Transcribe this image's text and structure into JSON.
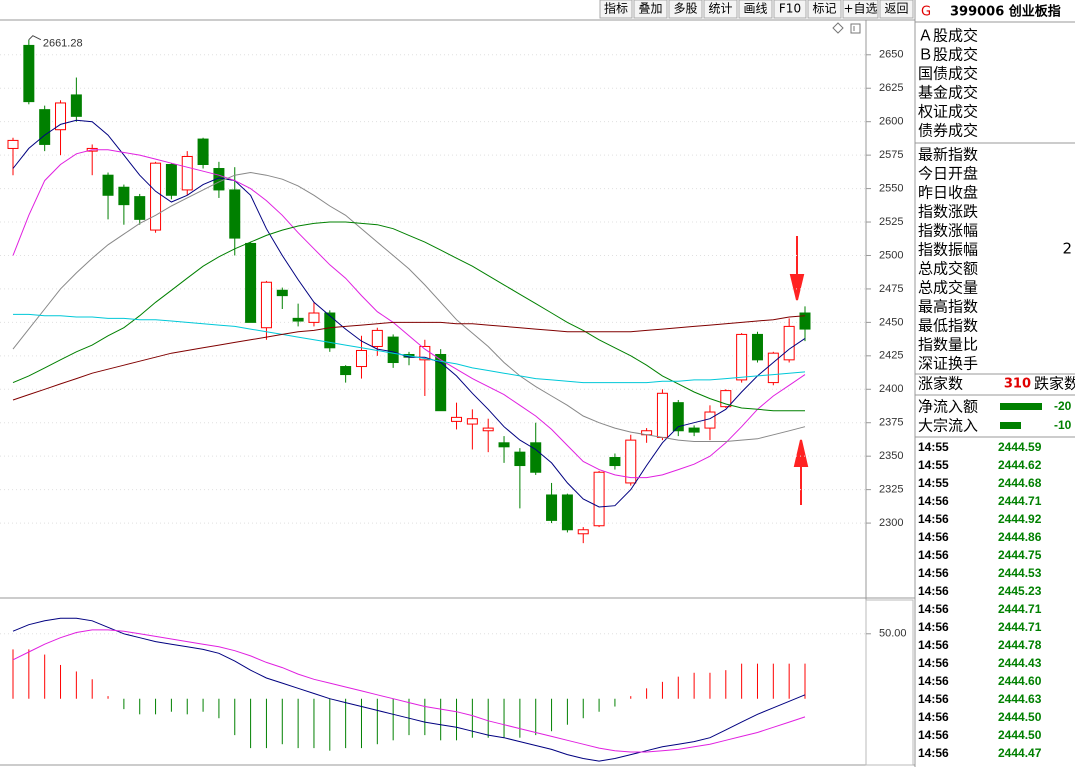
{
  "toolbar": [
    "指标",
    "叠加",
    "多股",
    "统计",
    "画线",
    "F10",
    "标记",
    "+自选",
    "返回"
  ],
  "panel": {
    "market": "G",
    "code_name": "399006 创业板指",
    "turnover_items": [
      "Ａ股成交",
      "Ｂ股成交",
      "国债成交",
      "基金成交",
      "权证成交",
      "债券成交"
    ],
    "index_items": [
      "最新指数",
      "今日开盘",
      "昨日收盘",
      "指数涨跌",
      "指数涨幅",
      "指数振幅",
      "总成交额",
      "总成交量",
      "最高指数",
      "最低指数",
      "指数量比",
      "深证换手"
    ],
    "amplitude_value": "2",
    "advancers": {
      "label": "涨家数",
      "value": "310"
    },
    "decliners": {
      "label": "跌家数"
    },
    "flows": [
      {
        "label": "净流入额",
        "value": -20
      },
      {
        "label": "大宗流入",
        "value": -10
      }
    ],
    "trades": [
      [
        "14:55",
        "2444.59"
      ],
      [
        "14:55",
        "2444.62"
      ],
      [
        "14:55",
        "2444.68"
      ],
      [
        "14:56",
        "2444.71"
      ],
      [
        "14:56",
        "2444.92"
      ],
      [
        "14:56",
        "2444.86"
      ],
      [
        "14:56",
        "2444.75"
      ],
      [
        "14:56",
        "2444.53"
      ],
      [
        "14:56",
        "2445.23"
      ],
      [
        "14:56",
        "2444.71"
      ],
      [
        "14:56",
        "2444.71"
      ],
      [
        "14:56",
        "2444.78"
      ],
      [
        "14:56",
        "2444.43"
      ],
      [
        "14:56",
        "2444.60"
      ],
      [
        "14:56",
        "2444.63"
      ],
      [
        "14:56",
        "2444.50"
      ],
      [
        "14:56",
        "2444.50"
      ],
      [
        "14:56",
        "2444.47"
      ]
    ]
  },
  "chart_data": [
    {
      "type": "candlestick",
      "up_color": "#ff0000",
      "down_color": "#008000",
      "grid": true,
      "ylim": [
        2244,
        2676
      ],
      "yticks": [
        2300,
        2325,
        2350,
        2375,
        2400,
        2425,
        2450,
        2475,
        2500,
        2525,
        2550,
        2575,
        2600,
        2625,
        2650
      ],
      "open": [
        2580,
        2657,
        2609,
        2594,
        2620,
        2578,
        2560,
        2551,
        2544,
        2519,
        2568,
        2549,
        2587,
        2565,
        2549,
        2509,
        2446,
        2474,
        2453,
        2450,
        2457,
        2417,
        2417,
        2432,
        2439,
        2426,
        2422,
        2426,
        2376,
        2374,
        2369,
        2360,
        2353,
        2360,
        2321,
        2321,
        2292,
        2298,
        2349,
        2330,
        2366,
        2364,
        2390,
        2371,
        2371,
        2387,
        2407,
        2441,
        2405,
        2422,
        2457
      ],
      "high": [
        2588,
        2661.28,
        2612,
        2616,
        2633,
        2583,
        2562,
        2553,
        2546,
        2570,
        2569,
        2578,
        2588,
        2570,
        2566,
        2510,
        2481,
        2476,
        2464,
        2465,
        2459,
        2418,
        2440,
        2446,
        2441,
        2428,
        2437,
        2430,
        2390,
        2385,
        2378,
        2365,
        2356,
        2375,
        2330,
        2322,
        2297,
        2339,
        2352,
        2366,
        2371,
        2400,
        2392,
        2373,
        2388,
        2400,
        2442,
        2443,
        2428,
        2453,
        2462
      ],
      "low": [
        2560,
        2613,
        2578,
        2575,
        2600,
        2560,
        2527,
        2523,
        2523,
        2517,
        2542,
        2545,
        2565,
        2543,
        2500,
        2450,
        2437,
        2460,
        2447,
        2447,
        2428,
        2405,
        2408,
        2425,
        2416,
        2418,
        2395,
        2384,
        2370,
        2355,
        2353,
        2345,
        2311,
        2336,
        2300,
        2293,
        2285,
        2297,
        2340,
        2328,
        2360,
        2362,
        2365,
        2365,
        2362,
        2386,
        2405,
        2420,
        2403,
        2420,
        2436
      ],
      "close": [
        2586,
        2615,
        2583,
        2614,
        2604,
        2580,
        2545,
        2538,
        2527,
        2569,
        2545,
        2574,
        2568,
        2549,
        2513,
        2450,
        2480,
        2470,
        2451,
        2457,
        2431,
        2411,
        2429,
        2444,
        2420,
        2424,
        2432,
        2384,
        2379,
        2378,
        2371,
        2357,
        2343,
        2338,
        2302,
        2295,
        2295,
        2338,
        2343,
        2362,
        2369,
        2397,
        2369,
        2368,
        2383,
        2399,
        2441,
        2422,
        2427,
        2447,
        2445
      ],
      "series": [
        {
          "color": "#000080",
          "values": [
            2565,
            2580,
            2590,
            2598,
            2601,
            2600,
            2590,
            2575,
            2560,
            2548,
            2540,
            2545,
            2553,
            2558,
            2556,
            2545,
            2520,
            2500,
            2482,
            2465,
            2455,
            2445,
            2436,
            2430,
            2428,
            2424,
            2424,
            2420,
            2410,
            2397,
            2385,
            2372,
            2362,
            2355,
            2345,
            2330,
            2318,
            2312,
            2313,
            2325,
            2343,
            2360,
            2372,
            2375,
            2378,
            2385,
            2398,
            2410,
            2420,
            2430,
            2438
          ]
        },
        {
          "color": "#e020e0",
          "values": [
            2500,
            2530,
            2556,
            2568,
            2576,
            2579,
            2579,
            2577,
            2575,
            2572,
            2569,
            2566,
            2563,
            2560,
            2556,
            2550,
            2541,
            2530,
            2517,
            2505,
            2493,
            2483,
            2470,
            2458,
            2450,
            2440,
            2430,
            2422,
            2415,
            2408,
            2402,
            2396,
            2388,
            2380,
            2370,
            2358,
            2346,
            2340,
            2336,
            2334,
            2334,
            2336,
            2340,
            2344,
            2350,
            2360,
            2372,
            2385,
            2395,
            2403,
            2411
          ]
        },
        {
          "color": "#888888",
          "values": [
            2430,
            2445,
            2460,
            2475,
            2487,
            2498,
            2508,
            2516,
            2524,
            2530,
            2537,
            2543,
            2549,
            2555,
            2560,
            2562,
            2560,
            2557,
            2552,
            2545,
            2537,
            2530,
            2520,
            2510,
            2500,
            2490,
            2478,
            2465,
            2452,
            2442,
            2432,
            2420,
            2410,
            2402,
            2395,
            2388,
            2380,
            2375,
            2371,
            2368,
            2366,
            2364,
            2362,
            2361,
            2361,
            2361,
            2362,
            2363,
            2366,
            2369,
            2372
          ]
        },
        {
          "color": "#008000",
          "values": [
            2405,
            2410,
            2416,
            2422,
            2428,
            2433,
            2440,
            2446,
            2455,
            2465,
            2474,
            2483,
            2492,
            2499,
            2505,
            2510,
            2515,
            2519,
            2522,
            2524,
            2525,
            2525,
            2524,
            2523,
            2520,
            2515,
            2510,
            2504,
            2498,
            2492,
            2485,
            2478,
            2471,
            2464,
            2457,
            2450,
            2444,
            2437,
            2431,
            2425,
            2418,
            2410,
            2404,
            2398,
            2393,
            2389,
            2386,
            2385,
            2384,
            2384,
            2384
          ]
        },
        {
          "color": "#00c8d8",
          "values": [
            2456,
            2456,
            2455,
            2455,
            2454,
            2454,
            2453,
            2453,
            2452,
            2452,
            2451,
            2450,
            2449,
            2448,
            2447,
            2445,
            2443,
            2441,
            2439,
            2437,
            2435,
            2433,
            2431,
            2429,
            2427,
            2425,
            2423,
            2421,
            2419,
            2416,
            2414,
            2412,
            2410,
            2408,
            2407,
            2406,
            2405,
            2405,
            2405,
            2405,
            2405,
            2406,
            2406,
            2407,
            2407,
            2408,
            2409,
            2410,
            2411,
            2412,
            2413
          ]
        },
        {
          "color": "#800000",
          "values": [
            2392,
            2396,
            2400,
            2404,
            2408,
            2412,
            2415,
            2418,
            2421,
            2424,
            2427,
            2429,
            2431,
            2433,
            2435,
            2437,
            2439,
            2441,
            2443,
            2444,
            2446,
            2447,
            2448,
            2449,
            2450,
            2450,
            2450,
            2450,
            2449,
            2449,
            2448,
            2447,
            2446,
            2445,
            2444,
            2443,
            2443,
            2443,
            2443,
            2443,
            2444,
            2445,
            2446,
            2447,
            2448,
            2449,
            2450,
            2451,
            2452,
            2454,
            2455
          ]
        }
      ]
    },
    {
      "type": "macd",
      "up_color": "#ff0000",
      "down_color": "#008000",
      "grid": true,
      "ylim": [
        -51,
        76
      ],
      "yticks": [
        {
          "value": 50,
          "label": "50.00"
        }
      ],
      "histogram": [
        38,
        38,
        34,
        26,
        21,
        15,
        2,
        -8,
        -12,
        -12,
        -10,
        -12,
        -10,
        -15,
        -28,
        -38,
        -38,
        -35,
        -38,
        -38,
        -40,
        -38,
        -38,
        -35,
        -32,
        -28,
        -28,
        -32,
        -32,
        -30,
        -30,
        -30,
        -30,
        -28,
        -25,
        -20,
        -15,
        -10,
        -6,
        2,
        8,
        13,
        17,
        20,
        20,
        22,
        27,
        27,
        27,
        27,
        27
      ],
      "series": [
        {
          "color": "#000080",
          "values": [
            52,
            57,
            60,
            62,
            62,
            60,
            55,
            50,
            47,
            44,
            42,
            40,
            38,
            35,
            29,
            22,
            16,
            12,
            8,
            4,
            0,
            -3,
            -6,
            -9,
            -12,
            -15,
            -18,
            -20,
            -22,
            -25,
            -28,
            -30,
            -33,
            -36,
            -39,
            -43,
            -46,
            -48,
            -46,
            -43,
            -40,
            -37,
            -35,
            -33,
            -30,
            -24,
            -18,
            -12,
            -7,
            -2,
            3
          ]
        },
        {
          "color": "#e020e0",
          "values": [
            30,
            36,
            42,
            47,
            51,
            53,
            53,
            52,
            50,
            48,
            46,
            44,
            42,
            40,
            37,
            33,
            28,
            24,
            19,
            15,
            12,
            9,
            6,
            3,
            0,
            -3,
            -6,
            -8,
            -10,
            -13,
            -17,
            -20,
            -23,
            -26,
            -29,
            -32,
            -35,
            -38,
            -40,
            -41,
            -41,
            -40,
            -39,
            -37,
            -35,
            -32,
            -29,
            -26,
            -22,
            -18,
            -14
          ]
        }
      ]
    }
  ]
}
